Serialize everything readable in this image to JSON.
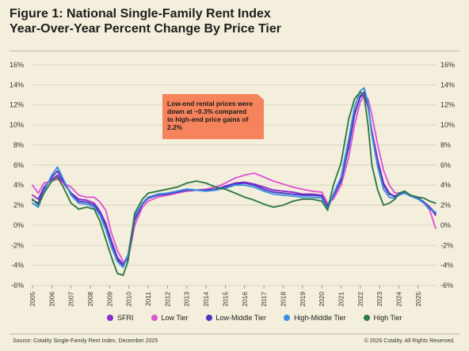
{
  "header": {
    "title_line1": "Figure 1: National Single-Family Rent Index",
    "title_line2": "Year-Over-Year Percent Change By Price Tier"
  },
  "footer": {
    "source": "Source: Cotality Single-Family Rent Index, December 2025",
    "copyright": "© 2026 Cotality. All Rights Reserved."
  },
  "callout": {
    "text": "Low-end rental prices were down at −0.3% compared to high-end price gains of 2.2%",
    "color": "#f5835c"
  },
  "chart_data": {
    "type": "line",
    "ylim": [
      -6,
      16
    ],
    "yticks": [
      "16%",
      "14%",
      "12%",
      "10%",
      "8%",
      "6%",
      "4%",
      "2%",
      "0%",
      "-2%",
      "-4%",
      "-6%"
    ],
    "ytick_values": [
      16,
      14,
      12,
      10,
      8,
      6,
      4,
      2,
      0,
      -2,
      -4,
      -6
    ],
    "xlim": [
      2005,
      2025.95
    ],
    "xticks": [
      "2005",
      "2006",
      "2007",
      "2008",
      "2009",
      "2010",
      "2011",
      "2012",
      "2013",
      "2014",
      "2015",
      "2016",
      "2017",
      "2018",
      "2019",
      "2020",
      "2021",
      "2022",
      "2023",
      "2024",
      "2025"
    ],
    "xtick_values": [
      2005,
      2006,
      2007,
      2008,
      2009,
      2010,
      2011,
      2012,
      2013,
      2014,
      2015,
      2016,
      2017,
      2018,
      2019,
      2020,
      2021,
      2022,
      2023,
      2024,
      2025
    ],
    "grid": true,
    "legend_position": "bottom",
    "series": [
      {
        "name": "SFRI",
        "color": "#8a2bd0",
        "x": [
          2005.0,
          2005.3,
          2005.6,
          2006.0,
          2006.3,
          2006.6,
          2007.0,
          2007.4,
          2007.8,
          2008.2,
          2008.5,
          2008.8,
          2009.1,
          2009.4,
          2009.7,
          2009.95,
          2010.3,
          2010.7,
          2011.0,
          2011.5,
          2012.0,
          2012.5,
          2013.0,
          2013.5,
          2014.0,
          2014.5,
          2015.0,
          2015.5,
          2016.0,
          2016.5,
          2017.0,
          2017.5,
          2018.0,
          2018.5,
          2019.0,
          2019.5,
          2020.0,
          2020.3,
          2020.6,
          2021.0,
          2021.4,
          2021.7,
          2022.0,
          2022.2,
          2022.4,
          2022.6,
          2022.9,
          2023.2,
          2023.5,
          2023.8,
          2024.0,
          2024.3,
          2024.6,
          2025.0,
          2025.3,
          2025.6,
          2025.9
        ],
        "y": [
          3.0,
          2.6,
          3.8,
          4.6,
          5.0,
          4.2,
          3.2,
          2.6,
          2.5,
          2.2,
          1.4,
          0.2,
          -1.6,
          -3.2,
          -3.9,
          -3.0,
          0.8,
          2.2,
          2.8,
          3.0,
          3.2,
          3.4,
          3.6,
          3.5,
          3.5,
          3.6,
          3.9,
          4.2,
          4.3,
          4.1,
          3.8,
          3.5,
          3.4,
          3.3,
          3.1,
          3.1,
          3.0,
          2.0,
          3.0,
          4.6,
          8.0,
          11.2,
          12.8,
          13.0,
          11.8,
          9.4,
          6.5,
          4.2,
          3.2,
          2.8,
          3.0,
          3.3,
          3.0,
          2.7,
          2.3,
          1.8,
          1.0
        ]
      },
      {
        "name": "Low Tier",
        "color": "#de55d4",
        "x": [
          2005.0,
          2005.3,
          2005.6,
          2006.0,
          2006.3,
          2006.6,
          2007.0,
          2007.4,
          2007.8,
          2008.2,
          2008.5,
          2008.8,
          2009.1,
          2009.4,
          2009.7,
          2009.95,
          2010.3,
          2010.7,
          2011.0,
          2011.5,
          2012.0,
          2012.5,
          2013.0,
          2013.5,
          2014.0,
          2014.5,
          2015.0,
          2015.5,
          2016.0,
          2016.5,
          2017.0,
          2017.5,
          2018.0,
          2018.5,
          2019.0,
          2019.5,
          2020.0,
          2020.3,
          2020.6,
          2021.0,
          2021.4,
          2021.7,
          2022.0,
          2022.2,
          2022.4,
          2022.6,
          2022.9,
          2023.2,
          2023.5,
          2023.8,
          2024.0,
          2024.3,
          2024.6,
          2025.0,
          2025.3,
          2025.6,
          2025.9
        ],
        "y": [
          4.0,
          3.2,
          4.2,
          4.4,
          4.6,
          4.2,
          3.8,
          3.0,
          2.8,
          2.8,
          2.3,
          1.5,
          -0.8,
          -2.5,
          -3.6,
          -3.5,
          0.0,
          1.8,
          2.4,
          2.8,
          3.0,
          3.2,
          3.4,
          3.5,
          3.6,
          3.8,
          4.2,
          4.7,
          5.0,
          5.2,
          4.8,
          4.4,
          4.1,
          3.8,
          3.6,
          3.4,
          3.3,
          2.2,
          2.6,
          4.0,
          6.8,
          10.0,
          12.3,
          12.9,
          12.6,
          11.0,
          8.0,
          5.5,
          4.0,
          3.2,
          3.2,
          3.2,
          3.0,
          2.6,
          2.2,
          1.5,
          -0.3
        ]
      },
      {
        "name": "Low-Middle Tier",
        "color": "#4a34c4",
        "x": [
          2005.0,
          2005.3,
          2005.6,
          2006.0,
          2006.3,
          2006.6,
          2007.0,
          2007.4,
          2007.8,
          2008.2,
          2008.5,
          2008.8,
          2009.1,
          2009.4,
          2009.7,
          2009.95,
          2010.3,
          2010.7,
          2011.0,
          2011.5,
          2012.0,
          2012.5,
          2013.0,
          2013.5,
          2014.0,
          2014.5,
          2015.0,
          2015.5,
          2016.0,
          2016.5,
          2017.0,
          2017.5,
          2018.0,
          2018.5,
          2019.0,
          2019.5,
          2020.0,
          2020.3,
          2020.6,
          2021.0,
          2021.4,
          2021.7,
          2022.0,
          2022.2,
          2022.4,
          2022.6,
          2022.9,
          2023.2,
          2023.5,
          2023.8,
          2024.0,
          2024.3,
          2024.6,
          2025.0,
          2025.3,
          2025.6,
          2025.9
        ],
        "y": [
          2.5,
          2.2,
          3.6,
          4.8,
          5.4,
          4.4,
          3.2,
          2.4,
          2.3,
          2.0,
          1.2,
          0.0,
          -1.8,
          -3.4,
          -4.0,
          -3.3,
          0.5,
          2.1,
          2.7,
          3.0,
          3.1,
          3.3,
          3.5,
          3.5,
          3.5,
          3.6,
          3.8,
          4.1,
          4.2,
          4.0,
          3.6,
          3.3,
          3.2,
          3.1,
          3.0,
          3.0,
          2.9,
          1.8,
          2.9,
          4.4,
          7.8,
          11.0,
          12.9,
          13.3,
          12.0,
          9.2,
          6.2,
          4.0,
          3.1,
          2.9,
          3.1,
          3.3,
          3.0,
          2.7,
          2.3,
          1.8,
          1.2
        ]
      },
      {
        "name": "High-Middle Tier",
        "color": "#3a8fe0",
        "x": [
          2005.0,
          2005.3,
          2005.6,
          2006.0,
          2006.3,
          2006.6,
          2007.0,
          2007.4,
          2007.8,
          2008.2,
          2008.5,
          2008.8,
          2009.1,
          2009.4,
          2009.7,
          2009.95,
          2010.3,
          2010.7,
          2011.0,
          2011.5,
          2012.0,
          2012.5,
          2013.0,
          2013.5,
          2014.0,
          2014.5,
          2015.0,
          2015.5,
          2016.0,
          2016.5,
          2017.0,
          2017.5,
          2018.0,
          2018.5,
          2019.0,
          2019.5,
          2020.0,
          2020.3,
          2020.6,
          2021.0,
          2021.4,
          2021.7,
          2022.0,
          2022.2,
          2022.4,
          2022.6,
          2022.9,
          2023.2,
          2023.5,
          2023.8,
          2024.0,
          2024.3,
          2024.6,
          2025.0,
          2025.3,
          2025.6,
          2025.9
        ],
        "y": [
          2.2,
          1.8,
          3.4,
          5.0,
          5.8,
          4.6,
          3.0,
          2.2,
          2.1,
          1.8,
          1.0,
          -0.4,
          -2.2,
          -3.6,
          -4.2,
          -3.0,
          0.9,
          2.2,
          2.8,
          3.1,
          3.2,
          3.4,
          3.6,
          3.5,
          3.4,
          3.5,
          3.7,
          4.0,
          4.0,
          3.8,
          3.4,
          3.1,
          3.0,
          2.9,
          2.8,
          2.8,
          2.7,
          1.6,
          3.1,
          4.8,
          8.6,
          11.8,
          13.4,
          13.7,
          12.2,
          9.0,
          5.8,
          3.6,
          2.8,
          2.7,
          3.0,
          3.2,
          2.9,
          2.6,
          2.2,
          1.6,
          1.3
        ]
      },
      {
        "name": "High Tier",
        "color": "#2e7a45",
        "x": [
          2005.0,
          2005.3,
          2005.6,
          2006.0,
          2006.3,
          2006.6,
          2007.0,
          2007.4,
          2007.8,
          2008.2,
          2008.5,
          2008.8,
          2009.1,
          2009.4,
          2009.7,
          2009.95,
          2010.3,
          2010.7,
          2011.0,
          2011.5,
          2012.0,
          2012.5,
          2013.0,
          2013.5,
          2014.0,
          2014.5,
          2015.0,
          2015.5,
          2016.0,
          2016.5,
          2017.0,
          2017.5,
          2018.0,
          2018.5,
          2019.0,
          2019.5,
          2020.0,
          2020.3,
          2020.6,
          2021.0,
          2021.4,
          2021.7,
          2022.0,
          2022.2,
          2022.4,
          2022.6,
          2022.9,
          2023.2,
          2023.5,
          2023.8,
          2024.0,
          2024.3,
          2024.6,
          2025.0,
          2025.3,
          2025.6,
          2025.9
        ],
        "y": [
          2.6,
          2.0,
          3.2,
          4.4,
          4.8,
          3.8,
          2.2,
          1.6,
          1.8,
          1.6,
          0.4,
          -1.4,
          -3.2,
          -4.8,
          -5.0,
          -3.6,
          1.2,
          2.6,
          3.2,
          3.4,
          3.6,
          3.8,
          4.2,
          4.4,
          4.2,
          3.8,
          3.6,
          3.2,
          2.8,
          2.5,
          2.1,
          1.8,
          2.0,
          2.4,
          2.6,
          2.6,
          2.4,
          1.5,
          4.0,
          6.2,
          10.6,
          12.6,
          13.3,
          12.8,
          10.0,
          6.0,
          3.5,
          2.0,
          2.2,
          2.6,
          3.2,
          3.4,
          3.0,
          2.8,
          2.7,
          2.4,
          2.2
        ]
      }
    ]
  }
}
